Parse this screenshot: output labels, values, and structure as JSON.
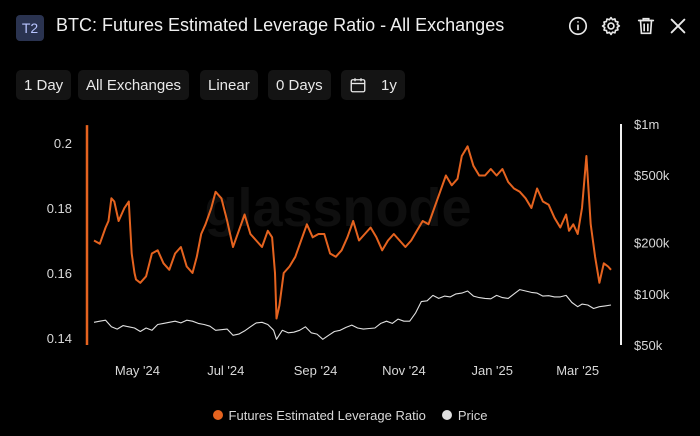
{
  "header": {
    "badge": "T2",
    "title": "BTC: Futures Estimated Leverage Ratio - All Exchanges",
    "icons": [
      "info-icon",
      "gear-icon",
      "trash-icon",
      "close-icon"
    ]
  },
  "toolbar": {
    "resolution": "1 Day",
    "exchange": "All Exchanges",
    "scale": "Linear",
    "sma": "0 Days",
    "range": "1y"
  },
  "watermark": "glassnode",
  "chart_data": {
    "type": "line",
    "title": "BTC: Futures Estimated Leverage Ratio - All Exchanges",
    "x_tick_labels": [
      "May '24",
      "Jul '24",
      "Sep '24",
      "Nov '24",
      "Jan '25",
      "Mar '25"
    ],
    "y_left": {
      "ticks": [
        0.14,
        0.16,
        0.18,
        0.2
      ],
      "range": [
        0.1397,
        0.2055
      ]
    },
    "y_right": {
      "ticks": [
        "$50k",
        "$100k",
        "$200k",
        "$500k",
        "$1m"
      ],
      "scale": "log",
      "range": [
        50000,
        1000000
      ]
    },
    "grid": false,
    "legend_position": "bottom-center",
    "colors": {
      "leverage": "#e5631f",
      "price": "#e0e0e0"
    },
    "series": [
      {
        "name": "Futures Estimated Leverage Ratio",
        "axis": "left",
        "x": [
          "2024-04-01",
          "2024-04-05",
          "2024-04-09",
          "2024-04-11",
          "2024-04-13",
          "2024-04-15",
          "2024-04-18",
          "2024-04-22",
          "2024-04-25",
          "2024-04-27",
          "2024-04-29",
          "2024-04-30",
          "2024-05-03",
          "2024-05-07",
          "2024-05-11",
          "2024-05-15",
          "2024-05-19",
          "2024-05-23",
          "2024-05-27",
          "2024-05-31",
          "2024-06-04",
          "2024-06-08",
          "2024-06-11",
          "2024-06-14",
          "2024-06-17",
          "2024-06-21",
          "2024-06-24",
          "2024-06-28",
          "2024-07-02",
          "2024-07-06",
          "2024-07-10",
          "2024-07-14",
          "2024-07-18",
          "2024-07-22",
          "2024-07-26",
          "2024-07-30",
          "2024-08-02",
          "2024-08-04",
          "2024-08-05",
          "2024-08-07",
          "2024-08-10",
          "2024-08-14",
          "2024-08-18",
          "2024-08-22",
          "2024-08-26",
          "2024-08-30",
          "2024-09-03",
          "2024-09-07",
          "2024-09-11",
          "2024-09-15",
          "2024-09-19",
          "2024-09-23",
          "2024-09-27",
          "2024-10-01",
          "2024-10-05",
          "2024-10-09",
          "2024-10-13",
          "2024-10-17",
          "2024-10-21",
          "2024-10-25",
          "2024-10-29",
          "2024-11-02",
          "2024-11-06",
          "2024-11-10",
          "2024-11-14",
          "2024-11-18",
          "2024-11-22",
          "2024-11-26",
          "2024-11-30",
          "2024-12-04",
          "2024-12-08",
          "2024-12-11",
          "2024-12-15",
          "2024-12-19",
          "2024-12-23",
          "2024-12-27",
          "2024-12-31",
          "2025-01-04",
          "2025-01-08",
          "2025-01-12",
          "2025-01-16",
          "2025-01-20",
          "2025-01-24",
          "2025-01-28",
          "2025-02-01",
          "2025-02-05",
          "2025-02-09",
          "2025-02-13",
          "2025-02-17",
          "2025-02-21",
          "2025-02-23",
          "2025-02-26",
          "2025-03-01",
          "2025-03-04",
          "2025-03-07",
          "2025-03-10",
          "2025-03-13",
          "2025-03-16",
          "2025-03-19",
          "2025-03-22",
          "2025-03-24"
        ],
        "values": [
          0.17,
          0.169,
          0.174,
          0.176,
          0.183,
          0.182,
          0.176,
          0.18,
          0.182,
          0.166,
          0.16,
          0.158,
          0.157,
          0.159,
          0.166,
          0.167,
          0.163,
          0.161,
          0.166,
          0.168,
          0.162,
          0.16,
          0.165,
          0.172,
          0.175,
          0.18,
          0.185,
          0.183,
          0.176,
          0.168,
          0.173,
          0.178,
          0.172,
          0.17,
          0.168,
          0.173,
          0.171,
          0.16,
          0.146,
          0.15,
          0.16,
          0.162,
          0.165,
          0.17,
          0.175,
          0.171,
          0.172,
          0.172,
          0.166,
          0.165,
          0.167,
          0.171,
          0.176,
          0.17,
          0.172,
          0.174,
          0.171,
          0.167,
          0.17,
          0.172,
          0.17,
          0.168,
          0.17,
          0.173,
          0.176,
          0.175,
          0.18,
          0.185,
          0.19,
          0.187,
          0.189,
          0.196,
          0.199,
          0.193,
          0.19,
          0.19,
          0.192,
          0.19,
          0.192,
          0.188,
          0.186,
          0.185,
          0.183,
          0.18,
          0.186,
          0.182,
          0.181,
          0.177,
          0.174,
          0.178,
          0.173,
          0.175,
          0.172,
          0.18,
          0.196,
          0.175,
          0.165,
          0.157,
          0.163,
          0.162,
          0.161
        ]
      },
      {
        "name": "Price",
        "axis": "right",
        "x": [
          "2024-04-01",
          "2024-04-05",
          "2024-04-09",
          "2024-04-13",
          "2024-04-17",
          "2024-04-21",
          "2024-04-25",
          "2024-04-29",
          "2024-05-03",
          "2024-05-07",
          "2024-05-11",
          "2024-05-15",
          "2024-05-19",
          "2024-05-23",
          "2024-05-27",
          "2024-05-31",
          "2024-06-04",
          "2024-06-08",
          "2024-06-12",
          "2024-06-16",
          "2024-06-20",
          "2024-06-24",
          "2024-06-28",
          "2024-07-02",
          "2024-07-06",
          "2024-07-10",
          "2024-07-14",
          "2024-07-18",
          "2024-07-22",
          "2024-07-26",
          "2024-07-30",
          "2024-08-03",
          "2024-08-05",
          "2024-08-09",
          "2024-08-13",
          "2024-08-17",
          "2024-08-21",
          "2024-08-25",
          "2024-08-29",
          "2024-09-02",
          "2024-09-06",
          "2024-09-10",
          "2024-09-14",
          "2024-09-18",
          "2024-09-22",
          "2024-09-26",
          "2024-09-30",
          "2024-10-04",
          "2024-10-08",
          "2024-10-12",
          "2024-10-16",
          "2024-10-20",
          "2024-10-24",
          "2024-10-28",
          "2024-11-01",
          "2024-11-05",
          "2024-11-09",
          "2024-11-13",
          "2024-11-17",
          "2024-11-21",
          "2024-11-25",
          "2024-11-29",
          "2024-12-03",
          "2024-12-07",
          "2024-12-11",
          "2024-12-15",
          "2024-12-19",
          "2024-12-23",
          "2024-12-27",
          "2024-12-31",
          "2025-01-04",
          "2025-01-08",
          "2025-01-12",
          "2025-01-16",
          "2025-01-20",
          "2025-01-24",
          "2025-01-28",
          "2025-02-01",
          "2025-02-05",
          "2025-02-09",
          "2025-02-13",
          "2025-02-17",
          "2025-02-21",
          "2025-02-25",
          "2025-03-01",
          "2025-03-04",
          "2025-03-08",
          "2025-03-12",
          "2025-03-16",
          "2025-03-20",
          "2025-03-24"
        ],
        "values": [
          68000,
          69000,
          70000,
          64000,
          62000,
          65000,
          64000,
          63000,
          60000,
          63000,
          61000,
          66000,
          67000,
          68000,
          69000,
          67500,
          70000,
          69000,
          67000,
          66000,
          64500,
          61000,
          61500,
          62000,
          57000,
          58000,
          60500,
          64000,
          67500,
          68000,
          66000,
          61000,
          54000,
          61000,
          59000,
          59500,
          61000,
          64000,
          59000,
          58000,
          54000,
          57000,
          60000,
          61000,
          63500,
          65500,
          63000,
          62000,
          62500,
          63000,
          67000,
          69000,
          67000,
          71000,
          69000,
          69000,
          77000,
          90000,
          91000,
          98000,
          94000,
          97000,
          96000,
          100000,
          101000,
          104000,
          97000,
          95000,
          94000,
          93500,
          98000,
          95000,
          94000,
          100000,
          106000,
          104000,
          102000,
          101000,
          97000,
          97500,
          96000,
          96000,
          98000,
          89000,
          84000,
          87000,
          86000,
          82000,
          84000,
          85000,
          86000
        ]
      }
    ]
  },
  "legend": {
    "items": [
      {
        "label": "Futures Estimated Leverage Ratio",
        "color": "#e5631f"
      },
      {
        "label": "Price",
        "color": "#e0e0e0"
      }
    ]
  }
}
